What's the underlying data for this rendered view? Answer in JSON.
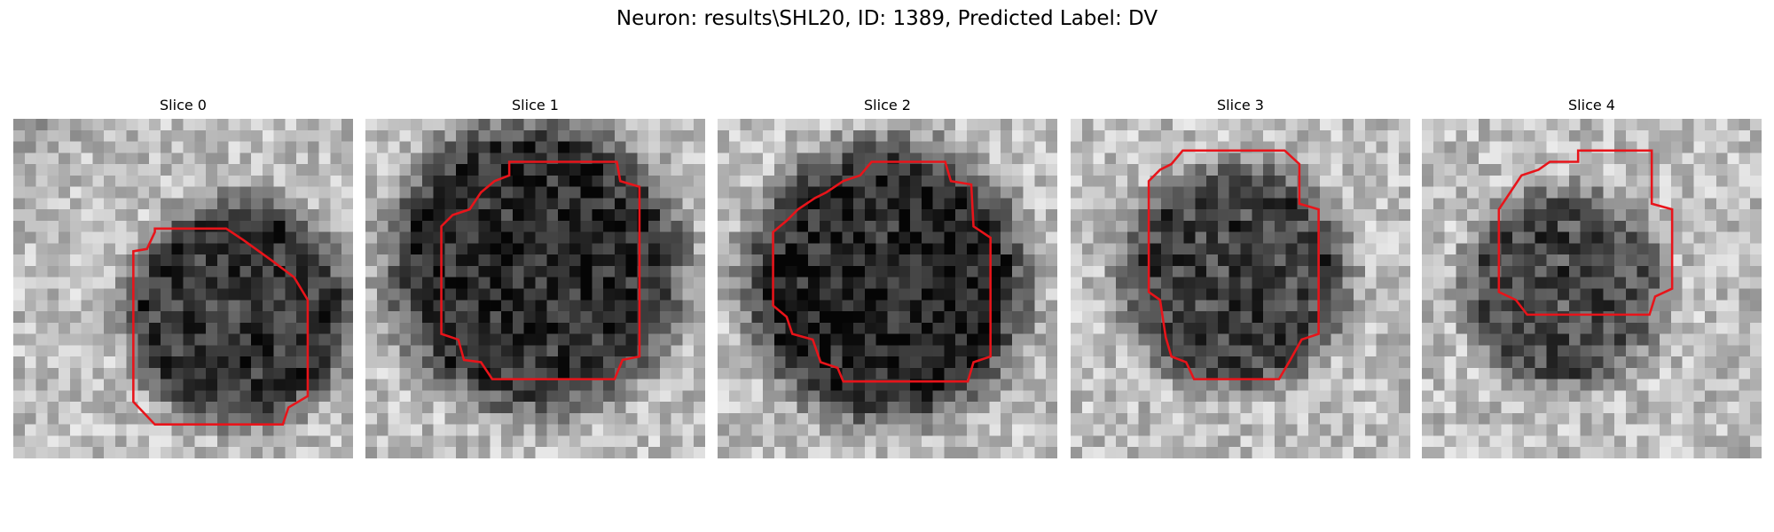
{
  "title": "Neuron: results\\SHL20, ID: 1389, Predicted Label: DV",
  "panels": [
    {
      "title": "Slice 0"
    },
    {
      "title": "Slice 1"
    },
    {
      "title": "Slice 2"
    },
    {
      "title": "Slice 3"
    },
    {
      "title": "Slice 4"
    }
  ]
}
